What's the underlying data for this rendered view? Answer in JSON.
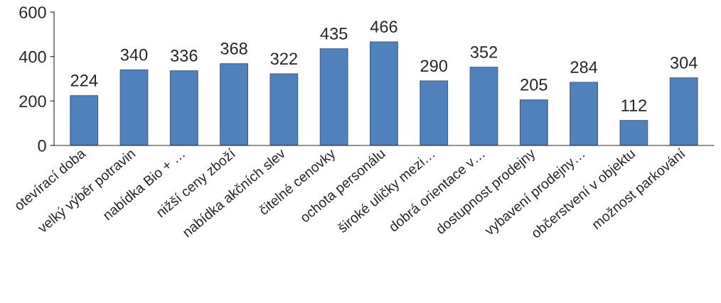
{
  "chart_data": {
    "type": "bar",
    "categories": [
      "otevírací doba",
      "velký výběr potravin",
      "nabídka Bio + …",
      "nižší ceny zboží",
      "nabídka akčních slev",
      "čitelné cenovky",
      "ochota personálu",
      "široké uličky mezi…",
      "dobrá orientace v…",
      "dostupnost prodejny",
      "vybavení prodejny…",
      "občerstvení v objektu",
      "možnost parkování"
    ],
    "values": [
      224,
      340,
      336,
      368,
      322,
      435,
      466,
      290,
      352,
      205,
      284,
      112,
      304
    ],
    "color": "#4f81bd",
    "ylim": [
      0,
      600
    ],
    "yticks": [
      0,
      200,
      400,
      600
    ],
    "grid": false,
    "data_labels": true
  }
}
